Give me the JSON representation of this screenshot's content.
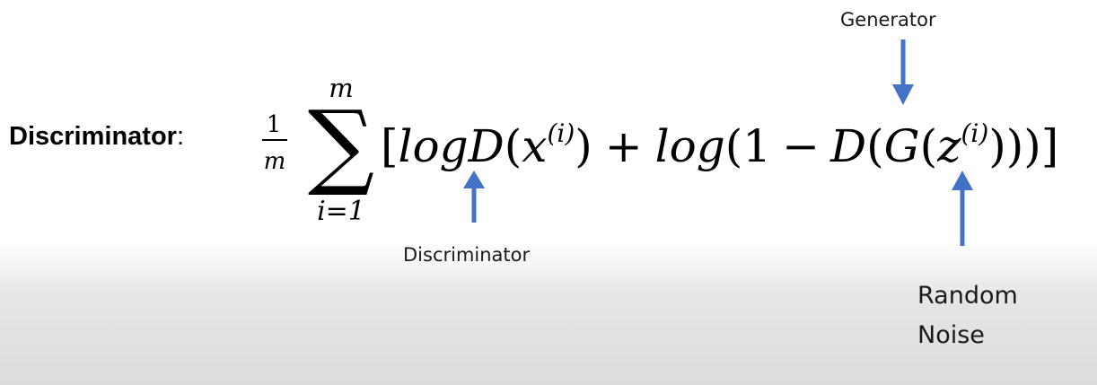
{
  "heading": {
    "title": "Discriminator",
    "colon": ":"
  },
  "formula": {
    "frac_num": "1",
    "frac_den": "m",
    "sum_upper": "m",
    "sum_symbol": "∑",
    "sum_lower": "i=1",
    "open_bracket": "[",
    "log1": "log",
    "D1": "D",
    "paren1_open": "(",
    "x": "x",
    "sup1": "(i)",
    "paren1_close": ")",
    "plus": "+",
    "log2": "log",
    "paren2_open": "(1",
    "minus": "−",
    "D2": "D",
    "paren3_open": "(",
    "G": "G",
    "paren4_open": "(",
    "z": "z",
    "sup2": "(i)",
    "closing": ")))]"
  },
  "annotations": {
    "generator": "Generator",
    "discriminator": "Discriminator",
    "noise_line1": "Random",
    "noise_line2": "Noise"
  },
  "colors": {
    "arrow": "#4472c4",
    "text": "#000000"
  }
}
